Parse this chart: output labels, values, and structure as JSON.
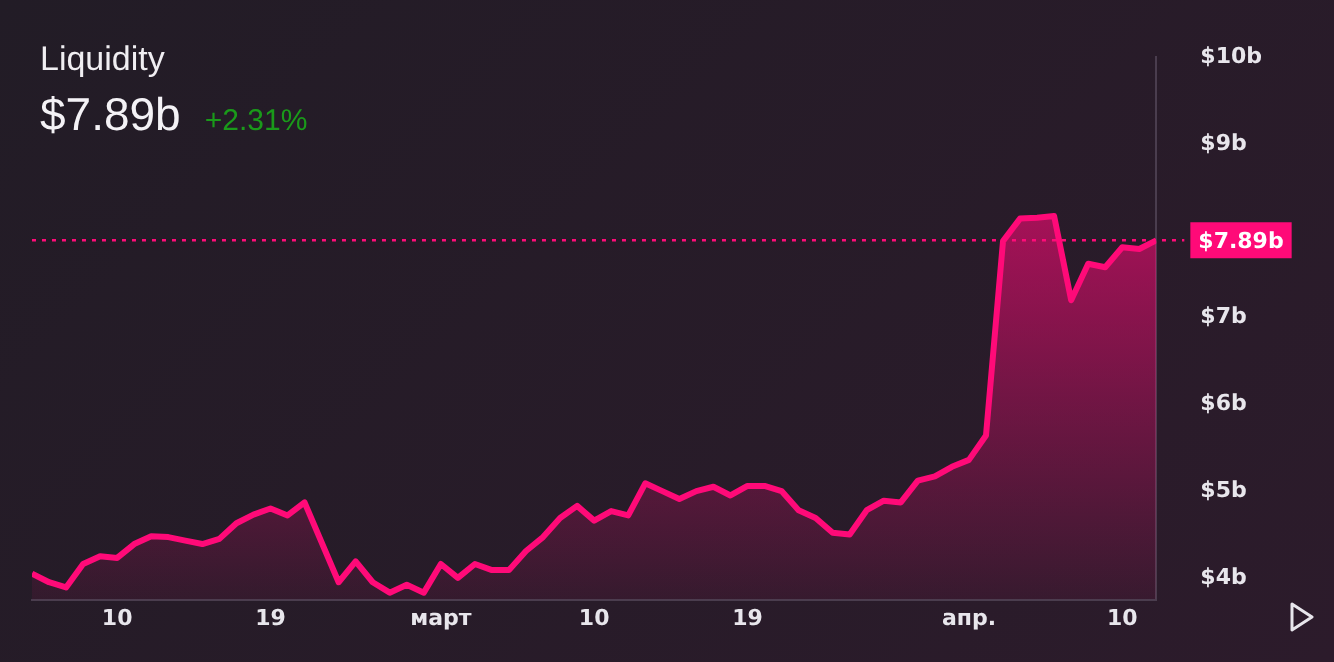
{
  "chart_data": {
    "type": "area",
    "title": "Liquidity",
    "subtitle": "$7.89b",
    "annotations": [
      "+2.31%"
    ],
    "x": [
      "--02-05",
      "--02-06",
      "--02-07",
      "--02-08",
      "--02-09",
      "--02-10",
      "--02-11",
      "--02-12",
      "--02-13",
      "--02-14",
      "--02-15",
      "--02-16",
      "--02-17",
      "--02-18",
      "--02-19",
      "--02-20",
      "--02-21",
      "--02-23",
      "--02-24",
      "--02-25",
      "--02-26",
      "--02-27",
      "--02-28",
      "--03-01",
      "--03-02",
      "--03-03",
      "--03-04",
      "--03-05",
      "--03-06",
      "--03-07",
      "--03-08",
      "--03-09",
      "--03-10",
      "--03-11",
      "--03-12",
      "--03-13",
      "--03-14",
      "--03-15",
      "--03-16",
      "--03-17",
      "--03-18",
      "--03-19",
      "--03-20",
      "--03-21",
      "--03-22",
      "--03-23",
      "--03-24",
      "--03-25",
      "--03-26",
      "--03-27",
      "--03-28",
      "--03-29",
      "--03-30",
      "--03-31",
      "--04-01",
      "--04-02",
      "--04-03",
      "--04-04",
      "--04-05",
      "--04-06",
      "--04-07",
      "--04-08",
      "--04-09",
      "--04-10",
      "--04-11",
      "--04-12"
    ],
    "series": [
      {
        "color": "#ff0a78",
        "values": [
          4.05,
          3.95,
          3.89,
          4.16,
          4.25,
          4.23,
          4.39,
          4.48,
          4.47,
          4.43,
          4.39,
          4.45,
          4.63,
          4.73,
          4.8,
          4.72,
          4.87,
          3.95,
          4.19,
          3.95,
          3.83,
          3.92,
          3.83,
          4.16,
          4.0,
          4.16,
          4.09,
          4.09,
          4.31,
          4.47,
          4.69,
          4.83,
          4.66,
          4.77,
          4.72,
          5.09,
          5.0,
          4.91,
          5.0,
          5.05,
          4.95,
          5.06,
          5.06,
          5.0,
          4.78,
          4.69,
          4.52,
          4.5,
          4.78,
          4.89,
          4.87,
          5.12,
          5.17,
          5.28,
          5.36,
          5.64,
          7.88,
          8.14,
          8.15,
          8.17,
          7.2,
          7.62,
          7.58,
          7.81,
          7.79,
          7.89
        ]
      }
    ],
    "xticks": [
      {
        "value": "--02-10",
        "label": "10"
      },
      {
        "value": "--02-19",
        "label": "19"
      },
      {
        "value": "--03-01",
        "label": "март"
      },
      {
        "value": "--03-10",
        "label": "10"
      },
      {
        "value": "--03-19",
        "label": "19"
      },
      {
        "value": "--04-01",
        "label": "апр."
      },
      {
        "value": "--04-10",
        "label": "10"
      }
    ],
    "xlim": [
      "--02-05",
      "--04-12"
    ],
    "ylim": [
      3.75,
      10
    ],
    "yticks": [
      {
        "value": 4,
        "label": "$4b"
      },
      {
        "value": 5,
        "label": "$5b"
      },
      {
        "value": 6,
        "label": "$6b"
      },
      {
        "value": 7,
        "label": "$7b"
      },
      {
        "value": 9,
        "label": "$9b"
      },
      {
        "value": 10,
        "label": "$10b"
      }
    ],
    "ref_lines": [
      {
        "axis": "y",
        "value": 7.89,
        "label": "$7.89b",
        "color": "#ff0a78",
        "line_style": "dotted"
      }
    ],
    "grid": false,
    "legend": false,
    "marker": "none",
    "line_style": "solid"
  }
}
